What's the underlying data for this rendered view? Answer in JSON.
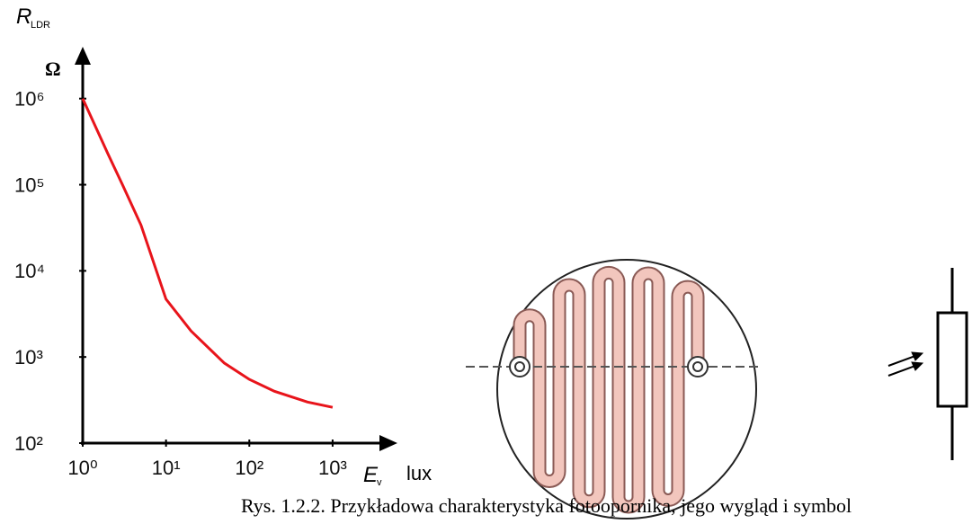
{
  "chart_data": {
    "type": "line",
    "x": [
      1,
      2,
      3,
      5,
      10,
      20,
      50,
      100,
      200,
      500,
      1000
    ],
    "values": [
      1000000,
      230000,
      100000,
      34000,
      4700,
      2000,
      850,
      550,
      400,
      300,
      260
    ],
    "color": "#e8141b",
    "xscale": "log",
    "yscale": "log",
    "xlim": [
      1,
      6000
    ],
    "ylim": [
      100,
      4000000
    ],
    "xticks": [
      {
        "value": 1,
        "label": "10⁰"
      },
      {
        "value": 10,
        "label": "10¹"
      },
      {
        "value": 100,
        "label": "10²"
      },
      {
        "value": 1000,
        "label": "10³"
      }
    ],
    "yticks": [
      {
        "value": 100,
        "label": "10²"
      },
      {
        "value": 1000,
        "label": "10³"
      },
      {
        "value": 10000,
        "label": "10⁴"
      },
      {
        "value": 100000,
        "label": "10⁵"
      },
      {
        "value": 1000000,
        "label": "10⁶"
      }
    ],
    "y_label": {
      "symbol": "R",
      "subscript": "LDR",
      "unit": "Ω"
    },
    "x_label": {
      "symbol": "E",
      "subscript": "v",
      "unit": "lux"
    }
  },
  "caption": "Rys. 1.2.2. Przykładowa charakterystyka fotoopornika, jego wygląd i symbol"
}
